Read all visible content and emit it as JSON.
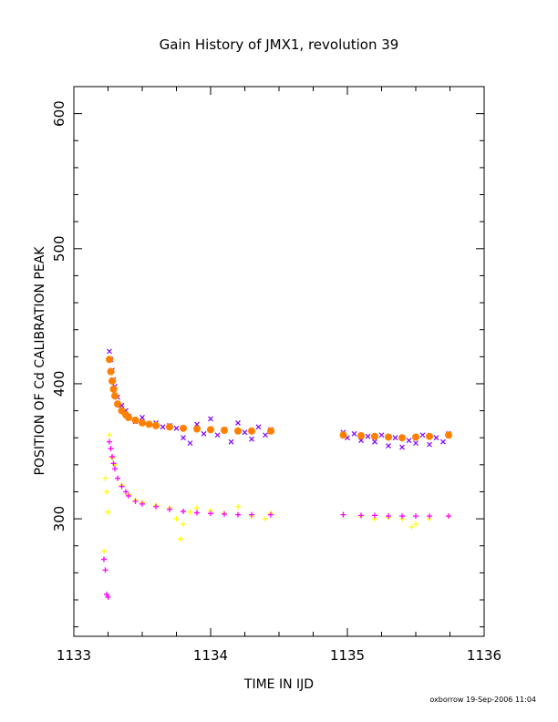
{
  "chart_data": {
    "type": "scatter",
    "title": "Gain History of JMX1, revolution 39",
    "xlabel": "TIME IN IJD",
    "ylabel": "POSITION OF Cd CALIBRATION PEAK",
    "footer": "oxborrow 19-Sep-2006 11:04",
    "xlim": [
      1133,
      1136
    ],
    "ylim": [
      213,
      620
    ],
    "xticks": [
      1133,
      1134,
      1135,
      1136
    ],
    "xtick_labels": [
      "1133",
      "1134",
      "1135",
      "1136"
    ],
    "yticks": [
      300,
      400,
      500,
      600
    ],
    "ytick_labels": [
      "300",
      "400",
      "500",
      "600"
    ],
    "grid": false,
    "legend": "none",
    "colors": {
      "upper_raw": "#8000ff",
      "upper_fit": "#ff8000",
      "lower_raw": "#ffff00",
      "lower_fit": "#ff00ff"
    },
    "series": [
      {
        "marker": "x",
        "color": "#8000ff",
        "points": [
          [
            1133.26,
            424
          ],
          [
            1133.27,
            418
          ],
          [
            1133.28,
            410
          ],
          [
            1133.29,
            403
          ],
          [
            1133.3,
            398
          ],
          [
            1133.32,
            390
          ],
          [
            1133.35,
            384
          ],
          [
            1133.38,
            380
          ],
          [
            1133.4,
            376
          ],
          [
            1133.45,
            372
          ],
          [
            1133.5,
            375
          ],
          [
            1133.55,
            370
          ],
          [
            1133.6,
            371
          ],
          [
            1133.65,
            368
          ],
          [
            1133.7,
            369
          ],
          [
            1133.75,
            367
          ],
          [
            1133.8,
            360
          ],
          [
            1133.85,
            356
          ],
          [
            1133.9,
            370
          ],
          [
            1133.95,
            363
          ],
          [
            1134.0,
            374
          ],
          [
            1134.05,
            362
          ],
          [
            1134.1,
            366
          ],
          [
            1134.15,
            357
          ],
          [
            1134.2,
            371
          ],
          [
            1134.25,
            364
          ],
          [
            1134.3,
            359
          ],
          [
            1134.35,
            368
          ],
          [
            1134.4,
            362
          ],
          [
            1134.44,
            366
          ],
          [
            1134.97,
            364
          ],
          [
            1135.0,
            360
          ],
          [
            1135.05,
            363
          ],
          [
            1135.1,
            358
          ],
          [
            1135.15,
            361
          ],
          [
            1135.2,
            357
          ],
          [
            1135.25,
            362
          ],
          [
            1135.3,
            354
          ],
          [
            1135.35,
            360
          ],
          [
            1135.4,
            353
          ],
          [
            1135.45,
            358
          ],
          [
            1135.5,
            356
          ],
          [
            1135.55,
            362
          ],
          [
            1135.6,
            355
          ],
          [
            1135.65,
            360
          ],
          [
            1135.7,
            357
          ],
          [
            1135.74,
            363
          ]
        ]
      },
      {
        "marker": "o",
        "color": "#ff8000",
        "points": [
          [
            1133.26,
            418
          ],
          [
            1133.27,
            409
          ],
          [
            1133.28,
            402
          ],
          [
            1133.29,
            396
          ],
          [
            1133.3,
            391
          ],
          [
            1133.32,
            385
          ],
          [
            1133.35,
            380
          ],
          [
            1133.38,
            377
          ],
          [
            1133.4,
            375
          ],
          [
            1133.45,
            373
          ],
          [
            1133.5,
            371
          ],
          [
            1133.55,
            370
          ],
          [
            1133.6,
            369
          ],
          [
            1133.7,
            368
          ],
          [
            1133.8,
            367
          ],
          [
            1133.9,
            366.5
          ],
          [
            1134.0,
            366
          ],
          [
            1134.1,
            365.5
          ],
          [
            1134.2,
            365
          ],
          [
            1134.3,
            365
          ],
          [
            1134.44,
            365
          ],
          [
            1134.97,
            362
          ],
          [
            1135.1,
            361.5
          ],
          [
            1135.2,
            361
          ],
          [
            1135.3,
            360.5
          ],
          [
            1135.4,
            360
          ],
          [
            1135.5,
            360.5
          ],
          [
            1135.6,
            361
          ],
          [
            1135.74,
            362
          ]
        ]
      },
      {
        "marker": "+",
        "color": "#ffff00",
        "points": [
          [
            1133.22,
            276
          ],
          [
            1133.23,
            330
          ],
          [
            1133.24,
            320
          ],
          [
            1133.25,
            305
          ],
          [
            1133.26,
            362
          ],
          [
            1133.27,
            352
          ],
          [
            1133.28,
            345
          ],
          [
            1133.3,
            340
          ],
          [
            1133.35,
            325
          ],
          [
            1133.4,
            318
          ],
          [
            1133.45,
            314
          ],
          [
            1133.5,
            312
          ],
          [
            1133.6,
            310
          ],
          [
            1133.7,
            308
          ],
          [
            1133.75,
            300
          ],
          [
            1133.78,
            285
          ],
          [
            1133.8,
            296
          ],
          [
            1133.85,
            305
          ],
          [
            1133.9,
            308
          ],
          [
            1134.0,
            306
          ],
          [
            1134.1,
            304
          ],
          [
            1134.2,
            309
          ],
          [
            1134.3,
            302
          ],
          [
            1134.4,
            300
          ],
          [
            1134.44,
            304
          ],
          [
            1134.97,
            303
          ],
          [
            1135.1,
            302
          ],
          [
            1135.2,
            300
          ],
          [
            1135.3,
            301
          ],
          [
            1135.4,
            300
          ],
          [
            1135.47,
            294
          ],
          [
            1135.5,
            296
          ],
          [
            1135.6,
            300
          ],
          [
            1135.74,
            302
          ]
        ]
      },
      {
        "marker": "+",
        "color": "#ff00ff",
        "points": [
          [
            1133.22,
            270
          ],
          [
            1133.23,
            262
          ],
          [
            1133.24,
            244
          ],
          [
            1133.25,
            242
          ],
          [
            1133.26,
            357
          ],
          [
            1133.27,
            352
          ],
          [
            1133.28,
            346
          ],
          [
            1133.29,
            341
          ],
          [
            1133.3,
            337
          ],
          [
            1133.32,
            330
          ],
          [
            1133.35,
            324
          ],
          [
            1133.38,
            320
          ],
          [
            1133.4,
            317
          ],
          [
            1133.45,
            313
          ],
          [
            1133.5,
            311
          ],
          [
            1133.6,
            309
          ],
          [
            1133.7,
            307
          ],
          [
            1133.8,
            305.5
          ],
          [
            1133.9,
            304.5
          ],
          [
            1134.0,
            304
          ],
          [
            1134.1,
            303.5
          ],
          [
            1134.2,
            303
          ],
          [
            1134.3,
            303
          ],
          [
            1134.44,
            303
          ],
          [
            1134.97,
            303
          ],
          [
            1135.1,
            302.5
          ],
          [
            1135.2,
            302.5
          ],
          [
            1135.3,
            302
          ],
          [
            1135.4,
            302
          ],
          [
            1135.5,
            302
          ],
          [
            1135.6,
            302
          ],
          [
            1135.74,
            302
          ]
        ]
      }
    ]
  }
}
